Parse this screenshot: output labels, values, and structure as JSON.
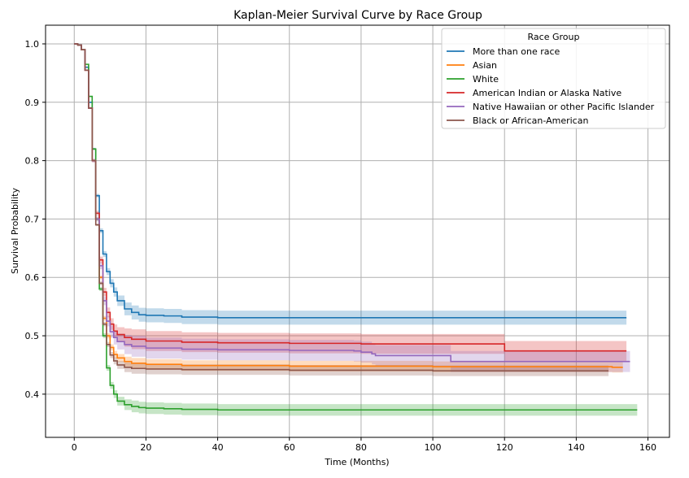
{
  "chart_data": {
    "type": "line",
    "title": "Kaplan-Meier Survival Curve by Race Group",
    "xlabel": "Time (Months)",
    "ylabel": "Survival Probability",
    "xlim": [
      -8,
      166
    ],
    "ylim": [
      0.326,
      1.032
    ],
    "xticks": [
      0,
      20,
      40,
      60,
      80,
      100,
      120,
      140,
      160
    ],
    "yticks": [
      0.4,
      0.5,
      0.6,
      0.7,
      0.8,
      0.9,
      1.0
    ],
    "xtick_labels": [
      "0",
      "20",
      "40",
      "60",
      "80",
      "100",
      "120",
      "140",
      "160"
    ],
    "ytick_labels": [
      "0.4",
      "0.5",
      "0.6",
      "0.7",
      "0.8",
      "0.9",
      "1.0"
    ],
    "grid": true,
    "legend_title": "Race Group",
    "legend_position": "top-right",
    "series": [
      {
        "name": "More than one race",
        "color": "#1f77b4",
        "points": [
          [
            0,
            1.0
          ],
          [
            1,
            0.998
          ],
          [
            2,
            0.99
          ],
          [
            3,
            0.96
          ],
          [
            4,
            0.9
          ],
          [
            5,
            0.82
          ],
          [
            6,
            0.74
          ],
          [
            7,
            0.68
          ],
          [
            8,
            0.64
          ],
          [
            9,
            0.61
          ],
          [
            10,
            0.59
          ],
          [
            11,
            0.575
          ],
          [
            12,
            0.56
          ],
          [
            14,
            0.546
          ],
          [
            16,
            0.54
          ],
          [
            18,
            0.536
          ],
          [
            20,
            0.535
          ],
          [
            25,
            0.534
          ],
          [
            30,
            0.532
          ],
          [
            40,
            0.531
          ],
          [
            60,
            0.531
          ],
          [
            100,
            0.531
          ],
          [
            154,
            0.531
          ]
        ],
        "ci": 0.012
      },
      {
        "name": "Asian",
        "color": "#ff7f0e",
        "points": [
          [
            0,
            1.0
          ],
          [
            1,
            0.998
          ],
          [
            2,
            0.99
          ],
          [
            3,
            0.955
          ],
          [
            4,
            0.89
          ],
          [
            5,
            0.8
          ],
          [
            6,
            0.7
          ],
          [
            7,
            0.6
          ],
          [
            8,
            0.53
          ],
          [
            9,
            0.5
          ],
          [
            10,
            0.48
          ],
          [
            11,
            0.468
          ],
          [
            12,
            0.462
          ],
          [
            14,
            0.456
          ],
          [
            16,
            0.453
          ],
          [
            20,
            0.451
          ],
          [
            30,
            0.449
          ],
          [
            60,
            0.448
          ],
          [
            100,
            0.447
          ],
          [
            150,
            0.446
          ],
          [
            153,
            0.446
          ]
        ],
        "ci": 0.009
      },
      {
        "name": "White",
        "color": "#2ca02c",
        "points": [
          [
            0,
            1.0
          ],
          [
            1,
            0.998
          ],
          [
            2,
            0.99
          ],
          [
            3,
            0.965
          ],
          [
            4,
            0.91
          ],
          [
            5,
            0.82
          ],
          [
            6,
            0.7
          ],
          [
            7,
            0.58
          ],
          [
            8,
            0.5
          ],
          [
            9,
            0.445
          ],
          [
            10,
            0.415
          ],
          [
            11,
            0.4
          ],
          [
            12,
            0.388
          ],
          [
            14,
            0.382
          ],
          [
            16,
            0.379
          ],
          [
            18,
            0.377
          ],
          [
            20,
            0.376
          ],
          [
            25,
            0.375
          ],
          [
            30,
            0.374
          ],
          [
            40,
            0.373
          ],
          [
            100,
            0.373
          ],
          [
            157,
            0.373
          ]
        ],
        "ci": 0.01
      },
      {
        "name": "American Indian or Alaska Native",
        "color": "#d62728",
        "points": [
          [
            0,
            1.0
          ],
          [
            1,
            0.998
          ],
          [
            2,
            0.99
          ],
          [
            3,
            0.955
          ],
          [
            4,
            0.89
          ],
          [
            5,
            0.8
          ],
          [
            6,
            0.71
          ],
          [
            7,
            0.63
          ],
          [
            8,
            0.575
          ],
          [
            9,
            0.54
          ],
          [
            10,
            0.52
          ],
          [
            11,
            0.508
          ],
          [
            12,
            0.502
          ],
          [
            14,
            0.497
          ],
          [
            16,
            0.494
          ],
          [
            20,
            0.491
          ],
          [
            30,
            0.489
          ],
          [
            40,
            0.488
          ],
          [
            60,
            0.487
          ],
          [
            80,
            0.486
          ],
          [
            100,
            0.486
          ],
          [
            120,
            0.486
          ],
          [
            120.01,
            0.474
          ],
          [
            154,
            0.474
          ]
        ],
        "ci": 0.017
      },
      {
        "name": "Native Hawaiian or other Pacific Islander",
        "color": "#9467bd",
        "points": [
          [
            0,
            1.0
          ],
          [
            1,
            0.998
          ],
          [
            2,
            0.99
          ],
          [
            3,
            0.955
          ],
          [
            4,
            0.89
          ],
          [
            5,
            0.8
          ],
          [
            6,
            0.7
          ],
          [
            7,
            0.62
          ],
          [
            8,
            0.56
          ],
          [
            9,
            0.525
          ],
          [
            10,
            0.507
          ],
          [
            11,
            0.497
          ],
          [
            12,
            0.49
          ],
          [
            14,
            0.485
          ],
          [
            16,
            0.482
          ],
          [
            20,
            0.479
          ],
          [
            30,
            0.477
          ],
          [
            40,
            0.476
          ],
          [
            60,
            0.475
          ],
          [
            78,
            0.474
          ],
          [
            80,
            0.472
          ],
          [
            83,
            0.469
          ],
          [
            84,
            0.466
          ],
          [
            105,
            0.466
          ],
          [
            105.01,
            0.456
          ],
          [
            155,
            0.456
          ]
        ],
        "ci": 0.018
      },
      {
        "name": "Black or African-American",
        "color": "#8c564b",
        "points": [
          [
            0,
            1.0
          ],
          [
            1,
            0.998
          ],
          [
            2,
            0.99
          ],
          [
            3,
            0.955
          ],
          [
            4,
            0.89
          ],
          [
            5,
            0.8
          ],
          [
            6,
            0.69
          ],
          [
            7,
            0.59
          ],
          [
            8,
            0.52
          ],
          [
            9,
            0.485
          ],
          [
            10,
            0.467
          ],
          [
            11,
            0.457
          ],
          [
            12,
            0.45
          ],
          [
            14,
            0.446
          ],
          [
            16,
            0.444
          ],
          [
            20,
            0.443
          ],
          [
            30,
            0.442
          ],
          [
            60,
            0.441
          ],
          [
            100,
            0.44
          ],
          [
            149,
            0.44
          ]
        ],
        "ci": 0.009
      }
    ]
  }
}
